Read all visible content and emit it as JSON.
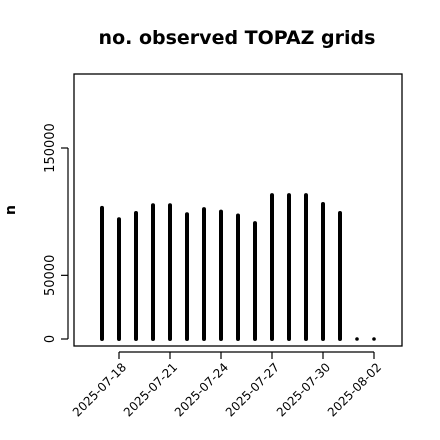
{
  "chart_data": {
    "type": "bar",
    "title": "no. observed TOPAZ grids",
    "ylabel": "n",
    "xlabel": "",
    "ylim": [
      0,
      210000
    ],
    "yticks": [
      0,
      50000,
      150000
    ],
    "ytick_labels": [
      "0",
      "50000",
      "150000"
    ],
    "x": [
      "2025-07-17",
      "2025-07-18",
      "2025-07-19",
      "2025-07-20",
      "2025-07-21",
      "2025-07-22",
      "2025-07-23",
      "2025-07-24",
      "2025-07-25",
      "2025-07-26",
      "2025-07-27",
      "2025-07-28",
      "2025-07-29",
      "2025-07-30",
      "2025-07-31",
      "2025-08-01",
      "2025-08-02"
    ],
    "values": [
      103000,
      94000,
      99000,
      105000,
      105000,
      98000,
      102000,
      100000,
      97000,
      91000,
      113000,
      113000,
      113000,
      106000,
      99000,
      0,
      0
    ],
    "xtick_labels": [
      {
        "label": "2025-07-18",
        "color": "#000000"
      },
      {
        "label": "2025-07-21",
        "color": "#000000"
      },
      {
        "label": "2025-07-24",
        "color": "#228B22"
      },
      {
        "label": "2025-07-27",
        "color": "#000000"
      },
      {
        "label": "2025-07-30",
        "color": "#000000"
      },
      {
        "label": "2025-08-02",
        "color": "#000000"
      }
    ],
    "bar_color": "#000000",
    "grid": false
  }
}
